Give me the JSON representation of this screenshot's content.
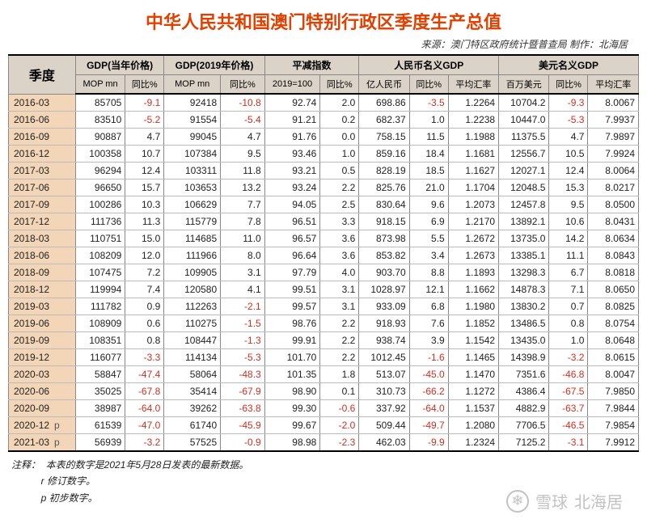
{
  "title": "中华人民共和国澳门特别行政区季度生产总值",
  "source": "来源：澳门特区政府统计暨普查局   制作：北海居",
  "header": {
    "period": "季度",
    "groups": [
      {
        "label": "GDP(当年价格)",
        "sub": [
          "MOP mn",
          "同比%"
        ]
      },
      {
        "label": "GDP(2019年价格)",
        "sub": [
          "MOP mn",
          "同比%"
        ]
      },
      {
        "label": "平减指数",
        "sub": [
          "2019=100",
          "同比%"
        ]
      },
      {
        "label": "人民币名义GDP",
        "sub": [
          "亿人民币",
          "同比%",
          "平均汇率"
        ]
      },
      {
        "label": "美元名义GDP",
        "sub": [
          "百万美元",
          "同比%",
          "平均汇率"
        ]
      }
    ]
  },
  "rows": [
    {
      "p": "2016-03",
      "f": "",
      "c": [
        [
          "85705",
          0
        ],
        [
          "-9.1",
          1
        ],
        [
          "92418",
          0
        ],
        [
          "-10.8",
          1
        ],
        [
          "92.74",
          0
        ],
        [
          "2.0",
          0
        ],
        [
          "698.86",
          0
        ],
        [
          "-3.5",
          1
        ],
        [
          "1.2264",
          0
        ],
        [
          "10704.2",
          0
        ],
        [
          "-9.3",
          1
        ],
        [
          "8.0067",
          0
        ]
      ]
    },
    {
      "p": "2016-06",
      "f": "",
      "c": [
        [
          "83510",
          0
        ],
        [
          "-5.2",
          1
        ],
        [
          "91554",
          0
        ],
        [
          "-5.4",
          1
        ],
        [
          "91.21",
          0
        ],
        [
          "0.2",
          0
        ],
        [
          "682.37",
          0
        ],
        [
          "1.0",
          0
        ],
        [
          "1.2238",
          0
        ],
        [
          "10447.0",
          0
        ],
        [
          "-5.3",
          1
        ],
        [
          "7.9937",
          0
        ]
      ]
    },
    {
      "p": "2016-09",
      "f": "",
      "c": [
        [
          "90887",
          0
        ],
        [
          "4.7",
          0
        ],
        [
          "99045",
          0
        ],
        [
          "4.7",
          0
        ],
        [
          "91.76",
          0
        ],
        [
          "0.0",
          0
        ],
        [
          "758.15",
          0
        ],
        [
          "11.5",
          0
        ],
        [
          "1.1988",
          0
        ],
        [
          "11375.5",
          0
        ],
        [
          "4.7",
          0
        ],
        [
          "7.9897",
          0
        ]
      ]
    },
    {
      "p": "2016-12",
      "f": "",
      "c": [
        [
          "100358",
          0
        ],
        [
          "10.7",
          0
        ],
        [
          "107384",
          0
        ],
        [
          "9.5",
          0
        ],
        [
          "93.46",
          0
        ],
        [
          "1.0",
          0
        ],
        [
          "859.16",
          0
        ],
        [
          "18.4",
          0
        ],
        [
          "1.1681",
          0
        ],
        [
          "12556.7",
          0
        ],
        [
          "10.5",
          0
        ],
        [
          "7.9924",
          0
        ]
      ]
    },
    {
      "p": "2017-03",
      "f": "",
      "c": [
        [
          "96294",
          0
        ],
        [
          "12.4",
          0
        ],
        [
          "103311",
          0
        ],
        [
          "11.8",
          0
        ],
        [
          "93.21",
          0
        ],
        [
          "0.5",
          0
        ],
        [
          "828.19",
          0
        ],
        [
          "18.5",
          0
        ],
        [
          "1.1627",
          0
        ],
        [
          "12027.1",
          0
        ],
        [
          "12.4",
          0
        ],
        [
          "8.0064",
          0
        ]
      ]
    },
    {
      "p": "2017-06",
      "f": "",
      "c": [
        [
          "96650",
          0
        ],
        [
          "15.7",
          0
        ],
        [
          "103653",
          0
        ],
        [
          "13.2",
          0
        ],
        [
          "93.24",
          0
        ],
        [
          "2.2",
          0
        ],
        [
          "825.76",
          0
        ],
        [
          "21.0",
          0
        ],
        [
          "1.1704",
          0
        ],
        [
          "12048.5",
          0
        ],
        [
          "15.3",
          0
        ],
        [
          "8.0217",
          0
        ]
      ]
    },
    {
      "p": "2017-09",
      "f": "",
      "c": [
        [
          "100286",
          0
        ],
        [
          "10.3",
          0
        ],
        [
          "106629",
          0
        ],
        [
          "7.7",
          0
        ],
        [
          "94.05",
          0
        ],
        [
          "2.5",
          0
        ],
        [
          "830.64",
          0
        ],
        [
          "9.6",
          0
        ],
        [
          "1.2073",
          0
        ],
        [
          "12457.8",
          0
        ],
        [
          "9.5",
          0
        ],
        [
          "8.0500",
          0
        ]
      ]
    },
    {
      "p": "2017-12",
      "f": "",
      "c": [
        [
          "111736",
          0
        ],
        [
          "11.3",
          0
        ],
        [
          "115779",
          0
        ],
        [
          "7.8",
          0
        ],
        [
          "96.51",
          0
        ],
        [
          "3.3",
          0
        ],
        [
          "918.15",
          0
        ],
        [
          "6.9",
          0
        ],
        [
          "1.2170",
          0
        ],
        [
          "13892.1",
          0
        ],
        [
          "10.6",
          0
        ],
        [
          "8.0431",
          0
        ]
      ]
    },
    {
      "p": "2018-03",
      "f": "",
      "c": [
        [
          "110751",
          0
        ],
        [
          "15.0",
          0
        ],
        [
          "114685",
          0
        ],
        [
          "11.0",
          0
        ],
        [
          "96.57",
          0
        ],
        [
          "3.6",
          0
        ],
        [
          "873.98",
          0
        ],
        [
          "5.5",
          0
        ],
        [
          "1.2672",
          0
        ],
        [
          "13735.0",
          0
        ],
        [
          "14.2",
          0
        ],
        [
          "8.0634",
          0
        ]
      ]
    },
    {
      "p": "2018-06",
      "f": "",
      "c": [
        [
          "108209",
          0
        ],
        [
          "12.0",
          0
        ],
        [
          "111966",
          0
        ],
        [
          "8.0",
          0
        ],
        [
          "96.64",
          0
        ],
        [
          "3.6",
          0
        ],
        [
          "853.82",
          0
        ],
        [
          "3.4",
          0
        ],
        [
          "1.2673",
          0
        ],
        [
          "13385.1",
          0
        ],
        [
          "11.1",
          0
        ],
        [
          "8.0843",
          0
        ]
      ]
    },
    {
      "p": "2018-09",
      "f": "",
      "c": [
        [
          "107475",
          0
        ],
        [
          "7.2",
          0
        ],
        [
          "109905",
          0
        ],
        [
          "3.1",
          0
        ],
        [
          "97.79",
          0
        ],
        [
          "4.0",
          0
        ],
        [
          "903.70",
          0
        ],
        [
          "8.8",
          0
        ],
        [
          "1.1893",
          0
        ],
        [
          "13298.3",
          0
        ],
        [
          "6.7",
          0
        ],
        [
          "8.0818",
          0
        ]
      ]
    },
    {
      "p": "2018-12",
      "f": "",
      "c": [
        [
          "119994",
          0
        ],
        [
          "7.4",
          0
        ],
        [
          "120580",
          0
        ],
        [
          "4.1",
          0
        ],
        [
          "99.51",
          0
        ],
        [
          "3.1",
          0
        ],
        [
          "1028.97",
          0
        ],
        [
          "12.1",
          0
        ],
        [
          "1.1662",
          0
        ],
        [
          "14878.3",
          0
        ],
        [
          "7.1",
          0
        ],
        [
          "8.0650",
          0
        ]
      ]
    },
    {
      "p": "2019-03",
      "f": "",
      "c": [
        [
          "111782",
          0
        ],
        [
          "0.9",
          0
        ],
        [
          "112263",
          0
        ],
        [
          "-2.1",
          1
        ],
        [
          "99.57",
          0
        ],
        [
          "3.1",
          0
        ],
        [
          "933.09",
          0
        ],
        [
          "6.8",
          0
        ],
        [
          "1.1980",
          0
        ],
        [
          "13830.2",
          0
        ],
        [
          "0.7",
          0
        ],
        [
          "8.0825",
          0
        ]
      ]
    },
    {
      "p": "2019-06",
      "f": "",
      "c": [
        [
          "108909",
          0
        ],
        [
          "0.6",
          0
        ],
        [
          "110275",
          0
        ],
        [
          "-1.5",
          1
        ],
        [
          "98.76",
          0
        ],
        [
          "2.2",
          0
        ],
        [
          "918.93",
          0
        ],
        [
          "7.6",
          0
        ],
        [
          "1.1852",
          0
        ],
        [
          "13486.5",
          0
        ],
        [
          "0.8",
          0
        ],
        [
          "8.0754",
          0
        ]
      ]
    },
    {
      "p": "2019-09",
      "f": "",
      "c": [
        [
          "108351",
          0
        ],
        [
          "0.8",
          0
        ],
        [
          "108447",
          0
        ],
        [
          "-1.3",
          1
        ],
        [
          "99.91",
          0
        ],
        [
          "2.2",
          0
        ],
        [
          "938.74",
          0
        ],
        [
          "3.9",
          0
        ],
        [
          "1.1542",
          0
        ],
        [
          "13435.0",
          0
        ],
        [
          "1.0",
          0
        ],
        [
          "8.0648",
          0
        ]
      ]
    },
    {
      "p": "2019-12",
      "f": "",
      "c": [
        [
          "116077",
          0
        ],
        [
          "-3.3",
          1
        ],
        [
          "114134",
          0
        ],
        [
          "-5.3",
          1
        ],
        [
          "101.70",
          0
        ],
        [
          "2.2",
          0
        ],
        [
          "1012.45",
          0
        ],
        [
          "-1.6",
          1
        ],
        [
          "1.1465",
          0
        ],
        [
          "14398.9",
          0
        ],
        [
          "-3.2",
          1
        ],
        [
          "8.0615",
          0
        ]
      ]
    },
    {
      "p": "2020-03",
      "f": "",
      "c": [
        [
          "58847",
          0
        ],
        [
          "-47.4",
          1
        ],
        [
          "58064",
          0
        ],
        [
          "-48.3",
          1
        ],
        [
          "101.35",
          0
        ],
        [
          "1.8",
          0
        ],
        [
          "513.07",
          0
        ],
        [
          "-45.0",
          1
        ],
        [
          "1.1470",
          0
        ],
        [
          "7351.6",
          0
        ],
        [
          "-46.8",
          1
        ],
        [
          "8.0047",
          0
        ]
      ]
    },
    {
      "p": "2020-06",
      "f": "",
      "c": [
        [
          "35025",
          0
        ],
        [
          "-67.8",
          1
        ],
        [
          "35414",
          0
        ],
        [
          "-67.9",
          1
        ],
        [
          "98.90",
          0
        ],
        [
          "0.1",
          0
        ],
        [
          "310.73",
          0
        ],
        [
          "-66.2",
          1
        ],
        [
          "1.1272",
          0
        ],
        [
          "4386.4",
          0
        ],
        [
          "-67.5",
          1
        ],
        [
          "7.9850",
          0
        ]
      ]
    },
    {
      "p": "2020-09",
      "f": "",
      "c": [
        [
          "38987",
          0
        ],
        [
          "-64.0",
          1
        ],
        [
          "39262",
          0
        ],
        [
          "-63.8",
          1
        ],
        [
          "99.30",
          0
        ],
        [
          "-0.6",
          1
        ],
        [
          "337.92",
          0
        ],
        [
          "-64.0",
          1
        ],
        [
          "1.1537",
          0
        ],
        [
          "4882.9",
          0
        ],
        [
          "-63.7",
          1
        ],
        [
          "7.9844",
          0
        ]
      ]
    },
    {
      "p": "2020-12",
      "f": "p",
      "c": [
        [
          "61539",
          0
        ],
        [
          "-47.0",
          1
        ],
        [
          "61740",
          0
        ],
        [
          "-45.9",
          1
        ],
        [
          "99.67",
          0
        ],
        [
          "-2.0",
          1
        ],
        [
          "509.44",
          0
        ],
        [
          "-49.7",
          1
        ],
        [
          "1.2080",
          0
        ],
        [
          "7706.5",
          0
        ],
        [
          "-46.5",
          1
        ],
        [
          "7.9854",
          0
        ]
      ]
    },
    {
      "p": "2021-03",
      "f": "p",
      "c": [
        [
          "56939",
          0
        ],
        [
          "-3.2",
          1
        ],
        [
          "57525",
          0
        ],
        [
          "-0.9",
          1
        ],
        [
          "98.98",
          0
        ],
        [
          "-2.3",
          1
        ],
        [
          "462.03",
          0
        ],
        [
          "-9.9",
          1
        ],
        [
          "1.2324",
          0
        ],
        [
          "7125.2",
          0
        ],
        [
          "-3.1",
          1
        ],
        [
          "7.9912",
          0
        ]
      ]
    }
  ],
  "notes": {
    "prefix": "注释：",
    "lines": [
      "本表的数字是2021年5月28日发表的最新数据。",
      "r 修订数字。",
      "p 初步数字。"
    ]
  },
  "watermark": {
    "site": "雪球",
    "author": "北海居"
  }
}
